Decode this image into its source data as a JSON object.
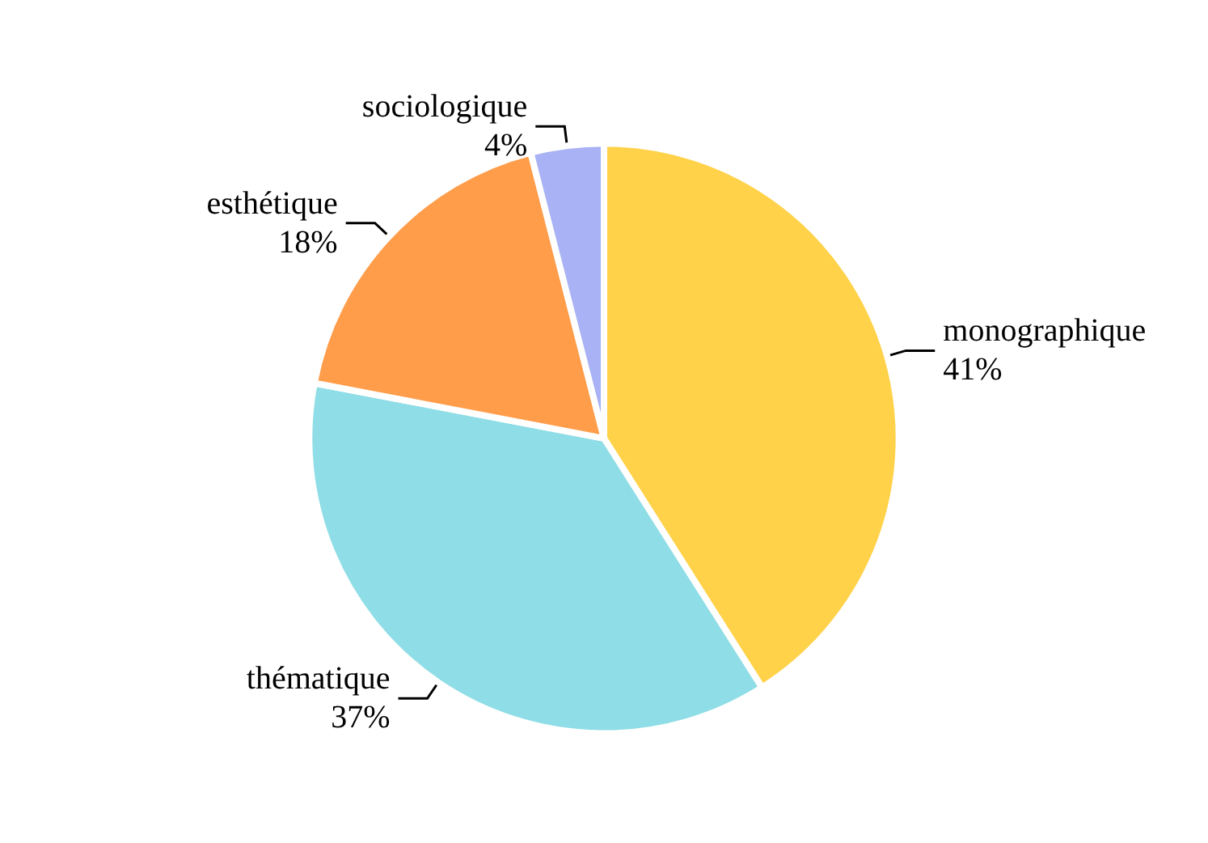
{
  "chart_data": {
    "type": "pie",
    "categories": [
      "monographique",
      "thématique",
      "esthétique",
      "sociologique"
    ],
    "values": [
      41,
      37,
      18,
      4
    ],
    "value_labels": [
      "41%",
      "37%",
      "18%",
      "4%"
    ],
    "colors": [
      "#ffd24a",
      "#8fdde6",
      "#ff9d4a",
      "#a8b2f4"
    ],
    "legend": false
  }
}
